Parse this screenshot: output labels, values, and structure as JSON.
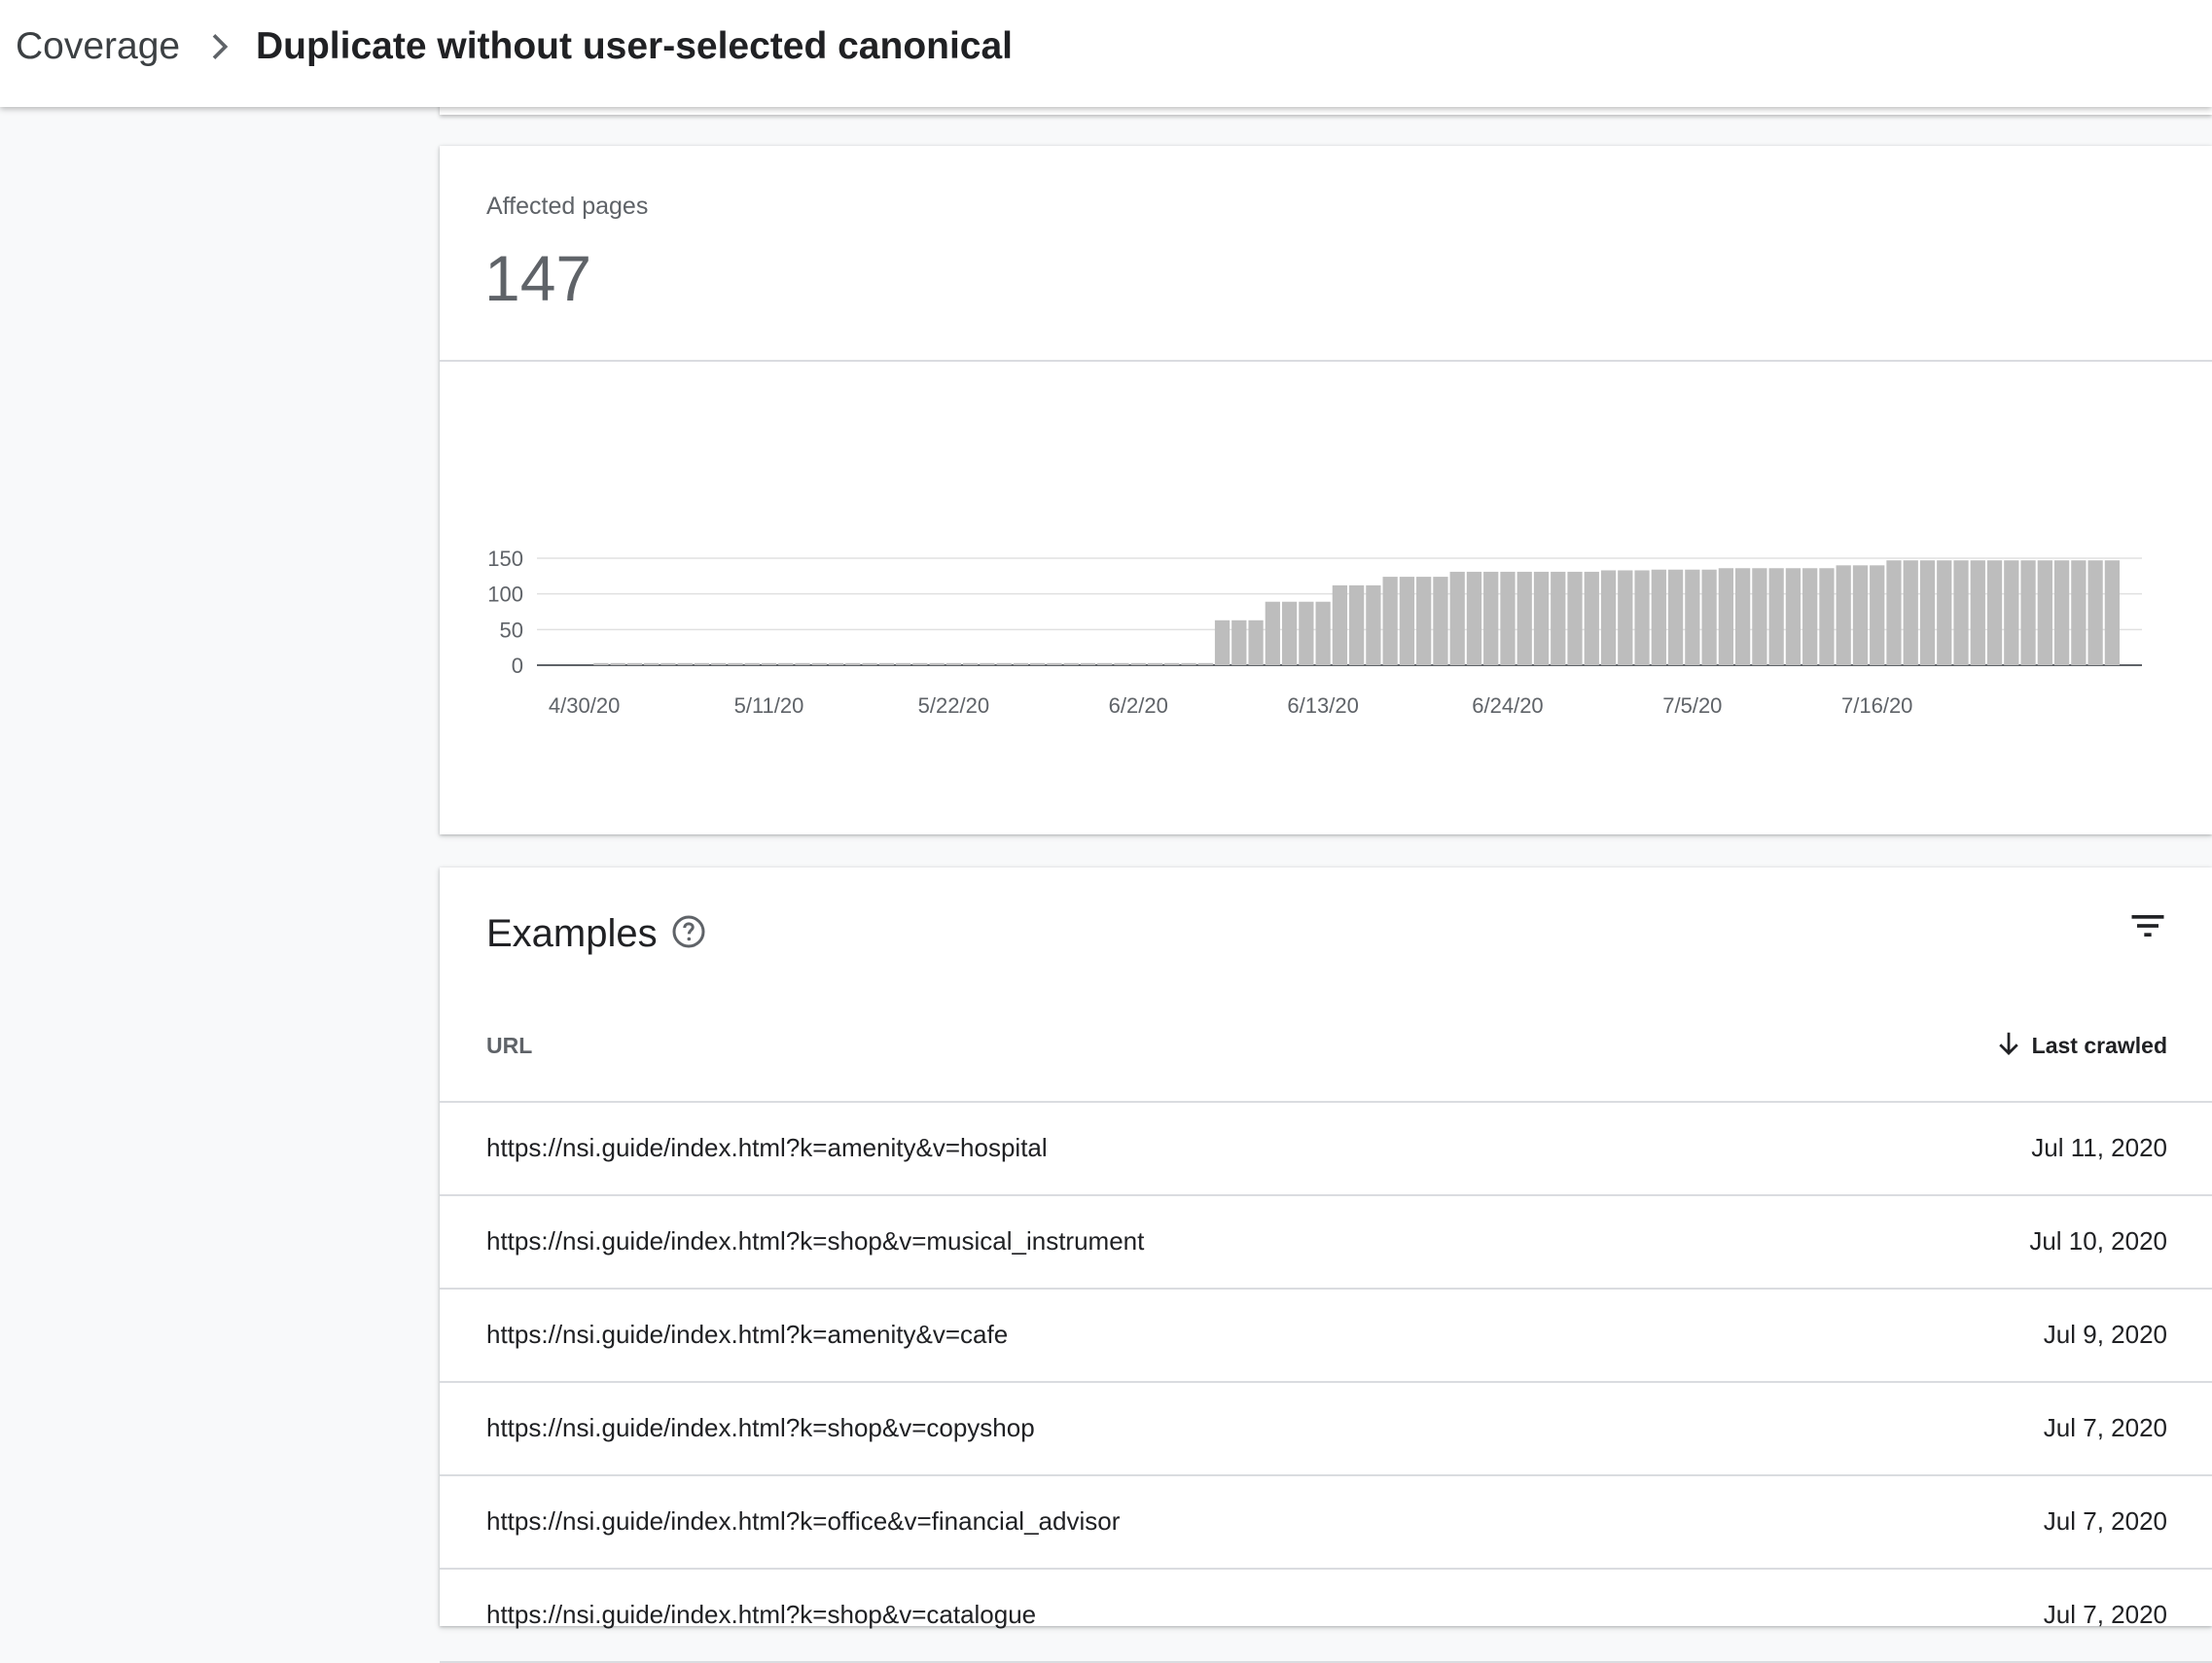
{
  "header": {
    "breadcrumb_root": "Coverage",
    "title": "Duplicate without user-selected canonical"
  },
  "metric": {
    "label": "Affected pages",
    "value": "147"
  },
  "chart_data": {
    "type": "bar",
    "x_tick_labels": [
      "4/30/20",
      "5/11/20",
      "5/22/20",
      "6/2/20",
      "6/13/20",
      "6/24/20",
      "7/5/20",
      "7/16/20"
    ],
    "ylim": [
      0,
      150
    ],
    "y_ticks": [
      0,
      50,
      100,
      150
    ],
    "grid": true,
    "bar_color": "#bdbdbd",
    "values": [
      0,
      3,
      3,
      3,
      3,
      3,
      3,
      3,
      3,
      3,
      3,
      3,
      3,
      3,
      3,
      3,
      3,
      3,
      3,
      3,
      3,
      3,
      3,
      3,
      3,
      3,
      3,
      3,
      3,
      3,
      3,
      3,
      3,
      3,
      3,
      3,
      3,
      3,
      63,
      63,
      63,
      89,
      89,
      89,
      89,
      112,
      112,
      112,
      124,
      124,
      124,
      124,
      131,
      131,
      131,
      131,
      131,
      131,
      131,
      131,
      131,
      133,
      133,
      133,
      134,
      134,
      134,
      134,
      136,
      136,
      136,
      136,
      136,
      136,
      136,
      140,
      140,
      140,
      147,
      147,
      147,
      147,
      147,
      147,
      147,
      147,
      147,
      147,
      147,
      147,
      147,
      147
    ]
  },
  "examples": {
    "title": "Examples",
    "columns": {
      "url": "URL",
      "last_crawled": "Last crawled"
    },
    "rows": [
      {
        "url": "https://nsi.guide/index.html?k=amenity&v=hospital",
        "date": "Jul 11, 2020"
      },
      {
        "url": "https://nsi.guide/index.html?k=shop&v=musical_instrument",
        "date": "Jul 10, 2020"
      },
      {
        "url": "https://nsi.guide/index.html?k=amenity&v=cafe",
        "date": "Jul 9, 2020"
      },
      {
        "url": "https://nsi.guide/index.html?k=shop&v=copyshop",
        "date": "Jul 7, 2020"
      },
      {
        "url": "https://nsi.guide/index.html?k=office&v=financial_advisor",
        "date": "Jul 7, 2020"
      },
      {
        "url": "https://nsi.guide/index.html?k=shop&v=catalogue",
        "date": "Jul 7, 2020"
      }
    ]
  }
}
